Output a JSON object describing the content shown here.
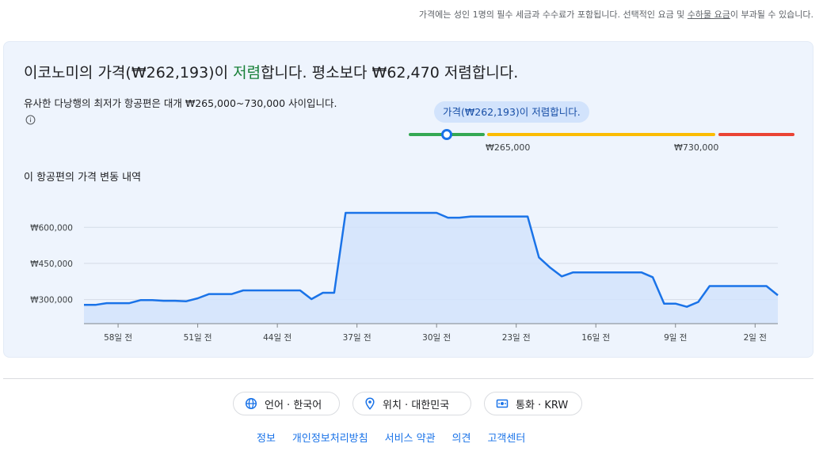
{
  "top_note": {
    "text_before": "가격에는 성인 1명의 필수 세금과 수수료가 포함됩니다. 선택적인 요금 및 ",
    "link": "수하물 요금",
    "text_after": "이 부과될 수 있습니다."
  },
  "headline": {
    "part1": "이코노미의 가격(₩262,193)이 ",
    "status": "저렴",
    "part2": "합니다. 평소보다 ₩62,470 저렴합니다."
  },
  "subtext": "유사한 다낭행의 최저가 항공편은 대개 ₩265,000~730,000 사이입니다.",
  "price_bubble": "가격(₩262,193)이 저렴합니다.",
  "range": {
    "low": "₩265,000",
    "high": "₩730,000"
  },
  "history_title": "이 항공편의 가격 변동 내역",
  "colors": {
    "low": "#34a853",
    "typical": "#fbbc04",
    "high": "#ea4335",
    "line": "#1a73e8"
  },
  "chart_data": {
    "type": "line",
    "title": "",
    "xlabel": "",
    "ylabel": "",
    "x_ticks": [
      "58일 전",
      "51일 전",
      "44일 전",
      "37일 전",
      "30일 전",
      "23일 전",
      "16일 전",
      "9일 전",
      "2일 전"
    ],
    "y_ticks": [
      "₩600,000",
      "₩450,000",
      "₩300,000"
    ],
    "ylim": [
      200000,
      660000
    ],
    "xlim": [
      -61,
      0
    ],
    "grid": true,
    "series": [
      {
        "values": [
          [
            -61,
            278000
          ],
          [
            -60,
            278000
          ],
          [
            -59,
            285000
          ],
          [
            -58,
            285000
          ],
          [
            -57,
            285000
          ],
          [
            -56,
            298000
          ],
          [
            -55,
            298000
          ],
          [
            -54,
            295000
          ],
          [
            -53,
            295000
          ],
          [
            -52,
            293000
          ],
          [
            -51,
            305000
          ],
          [
            -50,
            323000
          ],
          [
            -49,
            323000
          ],
          [
            -48,
            323000
          ],
          [
            -47,
            338000
          ],
          [
            -46,
            338000
          ],
          [
            -45,
            338000
          ],
          [
            -44,
            338000
          ],
          [
            -43,
            338000
          ],
          [
            -42,
            338000
          ],
          [
            -41,
            302000
          ],
          [
            -40,
            328000
          ],
          [
            -39,
            328000
          ],
          [
            -38,
            660000
          ],
          [
            -37,
            660000
          ],
          [
            -36,
            660000
          ],
          [
            -35,
            660000
          ],
          [
            -34,
            660000
          ],
          [
            -33,
            660000
          ],
          [
            -32,
            660000
          ],
          [
            -31,
            660000
          ],
          [
            -30,
            660000
          ],
          [
            -29,
            640000
          ],
          [
            -28,
            640000
          ],
          [
            -27,
            645000
          ],
          [
            -26,
            645000
          ],
          [
            -25,
            645000
          ],
          [
            -24,
            645000
          ],
          [
            -23,
            645000
          ],
          [
            -22,
            645000
          ],
          [
            -21,
            475000
          ],
          [
            -20,
            432000
          ],
          [
            -19,
            396000
          ],
          [
            -18,
            413000
          ],
          [
            -17,
            413000
          ],
          [
            -16,
            413000
          ],
          [
            -15,
            413000
          ],
          [
            -14,
            413000
          ],
          [
            -13,
            413000
          ],
          [
            -12,
            413000
          ],
          [
            -11,
            393000
          ],
          [
            -10,
            283000
          ],
          [
            -9,
            283000
          ],
          [
            -8,
            270000
          ],
          [
            -7,
            290000
          ],
          [
            -6,
            356000
          ],
          [
            -5,
            356000
          ],
          [
            -4,
            356000
          ],
          [
            -3,
            356000
          ],
          [
            -2,
            356000
          ],
          [
            -1,
            356000
          ],
          [
            0,
            318000
          ]
        ]
      }
    ]
  },
  "footer": {
    "language": "언어 · 한국어",
    "location": "위치 · 대한민국",
    "currency": "통화 · KRW",
    "links": [
      "정보",
      "개인정보처리방침",
      "서비스 약관",
      "의견",
      "고객센터"
    ]
  }
}
